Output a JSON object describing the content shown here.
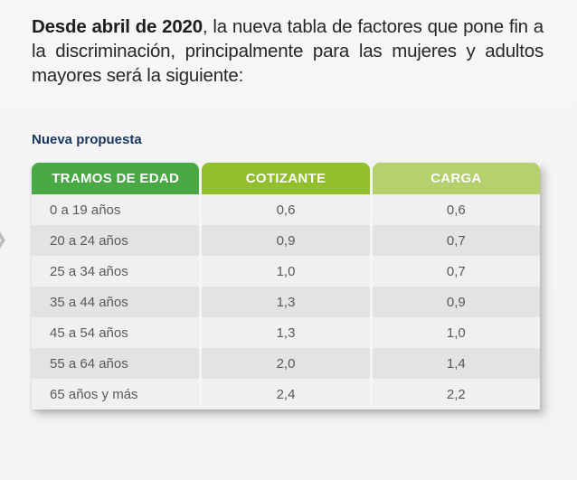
{
  "page": {
    "background": "#f4f4f5"
  },
  "heading": {
    "bold": "Desde abril de 2020",
    "rest": ", la nueva tabla de factores que pone fin a la discriminación, principalmente para las mujeres y adultos mayores será la siguiente:"
  },
  "table_label": "Nueva propuesta",
  "table": {
    "columns": [
      {
        "label": "TRAMOS DE EDAD",
        "color": "#48a945"
      },
      {
        "label": "COTIZANTE",
        "color": "#92c02c"
      },
      {
        "label": "CARGA",
        "color": "#b5d16d"
      }
    ],
    "rows": [
      {
        "tramo": "0 a 19 años",
        "cotizante": "0,6",
        "carga": "0,6"
      },
      {
        "tramo": "20 a 24 años",
        "cotizante": "0,9",
        "carga": "0,7"
      },
      {
        "tramo": "25 a 34 años",
        "cotizante": "1,0",
        "carga": "0,7"
      },
      {
        "tramo": "35 a 44 años",
        "cotizante": "1,3",
        "carga": "0,9"
      },
      {
        "tramo": "45 a 54 años",
        "cotizante": "1,3",
        "carga": "1,0"
      },
      {
        "tramo": "55 a 64 años",
        "cotizante": "2,0",
        "carga": "1,4"
      },
      {
        "tramo": "65 años y más",
        "cotizante": "2,4",
        "carga": "2,2"
      }
    ]
  },
  "icons": {
    "prev_arrow": "❯"
  }
}
